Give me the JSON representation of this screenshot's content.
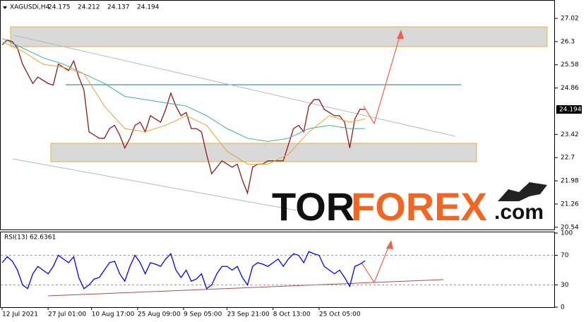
{
  "header": {
    "symbol": "XAGUSDi,H4",
    "ohlc": [
      24.175,
      24.212,
      24.137,
      24.194
    ]
  },
  "logo": {
    "parts": [
      "TOR",
      "FOREX",
      ".com"
    ]
  },
  "chart_data": [
    {
      "type": "line",
      "x": [
        0,
        1,
        2,
        3,
        4,
        5,
        6,
        7,
        8,
        9,
        10,
        11,
        12,
        13,
        14,
        15,
        16,
        17,
        18,
        19,
        20,
        21,
        22,
        23,
        24,
        25,
        26,
        27,
        28,
        29,
        30,
        31,
        32,
        33,
        34,
        35,
        36,
        37,
        38,
        39,
        40,
        41,
        42,
        43,
        44,
        45,
        46,
        47,
        48,
        49,
        50,
        51,
        52,
        53,
        54,
        55,
        56,
        57,
        58,
        59,
        60,
        61,
        62,
        63,
        64,
        65,
        66,
        67,
        68,
        69,
        70,
        71
      ],
      "xlim": [
        0,
        108
      ],
      "ylim": [
        20.47,
        27.59
      ],
      "yticks": [
        27.02,
        26.3,
        25.58,
        24.86,
        23.42,
        22.7,
        21.98,
        21.26,
        20.54
      ],
      "last_price": 24.194,
      "series": [
        {
          "color": "#8b1a1a",
          "values": [
            26.2,
            26.35,
            26.3,
            26.1,
            25.6,
            25.3,
            25.0,
            25.2,
            25.1,
            25.0,
            24.95,
            25.6,
            25.5,
            25.4,
            25.7,
            25.2,
            24.8,
            23.5,
            23.4,
            23.3,
            23.3,
            23.6,
            23.7,
            23.4,
            23.0,
            23.3,
            23.7,
            23.8,
            23.5,
            24.0,
            23.9,
            23.8,
            24.2,
            24.7,
            24.3,
            24.0,
            24.1,
            23.6,
            23.6,
            23.5,
            22.8,
            22.2,
            22.4,
            22.6,
            22.5,
            22.4,
            22.5,
            22.0,
            21.6,
            22.4,
            22.5,
            22.5,
            22.6,
            22.6,
            22.6,
            22.6,
            23.1,
            23.6,
            23.7,
            23.5,
            24.3,
            24.5,
            24.5,
            24.2,
            24.1,
            24.0,
            24.0,
            23.8,
            23.0,
            23.9,
            24.2,
            24.194
          ]
        },
        {
          "color": "#3cb0a8",
          "x": [
            0,
            4,
            8,
            12,
            16,
            20,
            24,
            28,
            32,
            36,
            40,
            44,
            48,
            52,
            56,
            60,
            64,
            68,
            71
          ],
          "values": [
            26.4,
            26.1,
            25.8,
            25.6,
            25.3,
            25.0,
            24.6,
            24.5,
            24.4,
            24.3,
            24.0,
            23.6,
            23.3,
            23.2,
            23.3,
            23.6,
            23.7,
            23.6,
            23.6
          ]
        },
        {
          "color": "#e8a33b",
          "x": [
            0,
            4,
            8,
            12,
            16,
            20,
            24,
            28,
            32,
            36,
            40,
            44,
            48,
            52,
            56,
            60,
            64,
            68,
            71
          ],
          "values": [
            26.3,
            26.0,
            25.6,
            25.5,
            25.3,
            24.3,
            23.6,
            23.5,
            23.7,
            24.0,
            23.7,
            22.9,
            22.5,
            22.5,
            22.8,
            23.5,
            24.0,
            23.8,
            23.9
          ]
        }
      ]
    },
    {
      "type": "line",
      "title": "RSI(13) 62.6361",
      "x": [
        0,
        1,
        2,
        3,
        4,
        5,
        6,
        7,
        8,
        9,
        10,
        11,
        12,
        13,
        14,
        15,
        16,
        17,
        18,
        19,
        20,
        21,
        22,
        23,
        24,
        25,
        26,
        27,
        28,
        29,
        30,
        31,
        32,
        33,
        34,
        35,
        36,
        37,
        38,
        39,
        40,
        41,
        42,
        43,
        44,
        45,
        46,
        47,
        48,
        49,
        50,
        51,
        52,
        53,
        54,
        55,
        56,
        57,
        58,
        59,
        60,
        61,
        62,
        63,
        64,
        65,
        66,
        67,
        68,
        69,
        70,
        71
      ],
      "xlim": [
        0,
        108
      ],
      "ylim": [
        0,
        100
      ],
      "yticks": [
        0,
        30,
        70,
        100
      ],
      "grid": true,
      "xticks": [
        {
          "value": 0,
          "label": "12 Jul 2021"
        },
        {
          "value": 9,
          "label": "27 Jul 01:00"
        },
        {
          "value": 17.5,
          "label": "10 Aug 17:00"
        },
        {
          "value": 26.5,
          "label": "25 Aug 09:00"
        },
        {
          "value": 35.5,
          "label": "9 Sep 05:00"
        },
        {
          "value": 44,
          "label": "23 Sep 21:00"
        },
        {
          "value": 53,
          "label": "8 Oct 13:00"
        },
        {
          "value": 62,
          "label": "25 Oct 05:00"
        }
      ],
      "series": [
        {
          "color": "#0000ff",
          "values": [
            60,
            68,
            62,
            50,
            30,
            25,
            45,
            55,
            50,
            45,
            55,
            70,
            65,
            60,
            68,
            40,
            25,
            30,
            38,
            40,
            50,
            60,
            62,
            45,
            35,
            55,
            70,
            60,
            45,
            60,
            58,
            55,
            65,
            72,
            50,
            40,
            50,
            35,
            38,
            45,
            25,
            30,
            45,
            55,
            55,
            50,
            55,
            40,
            30,
            55,
            60,
            58,
            55,
            60,
            65,
            55,
            65,
            72,
            70,
            60,
            75,
            72,
            70,
            55,
            50,
            45,
            50,
            40,
            28,
            55,
            58,
            62.6361
          ]
        }
      ]
    }
  ]
}
